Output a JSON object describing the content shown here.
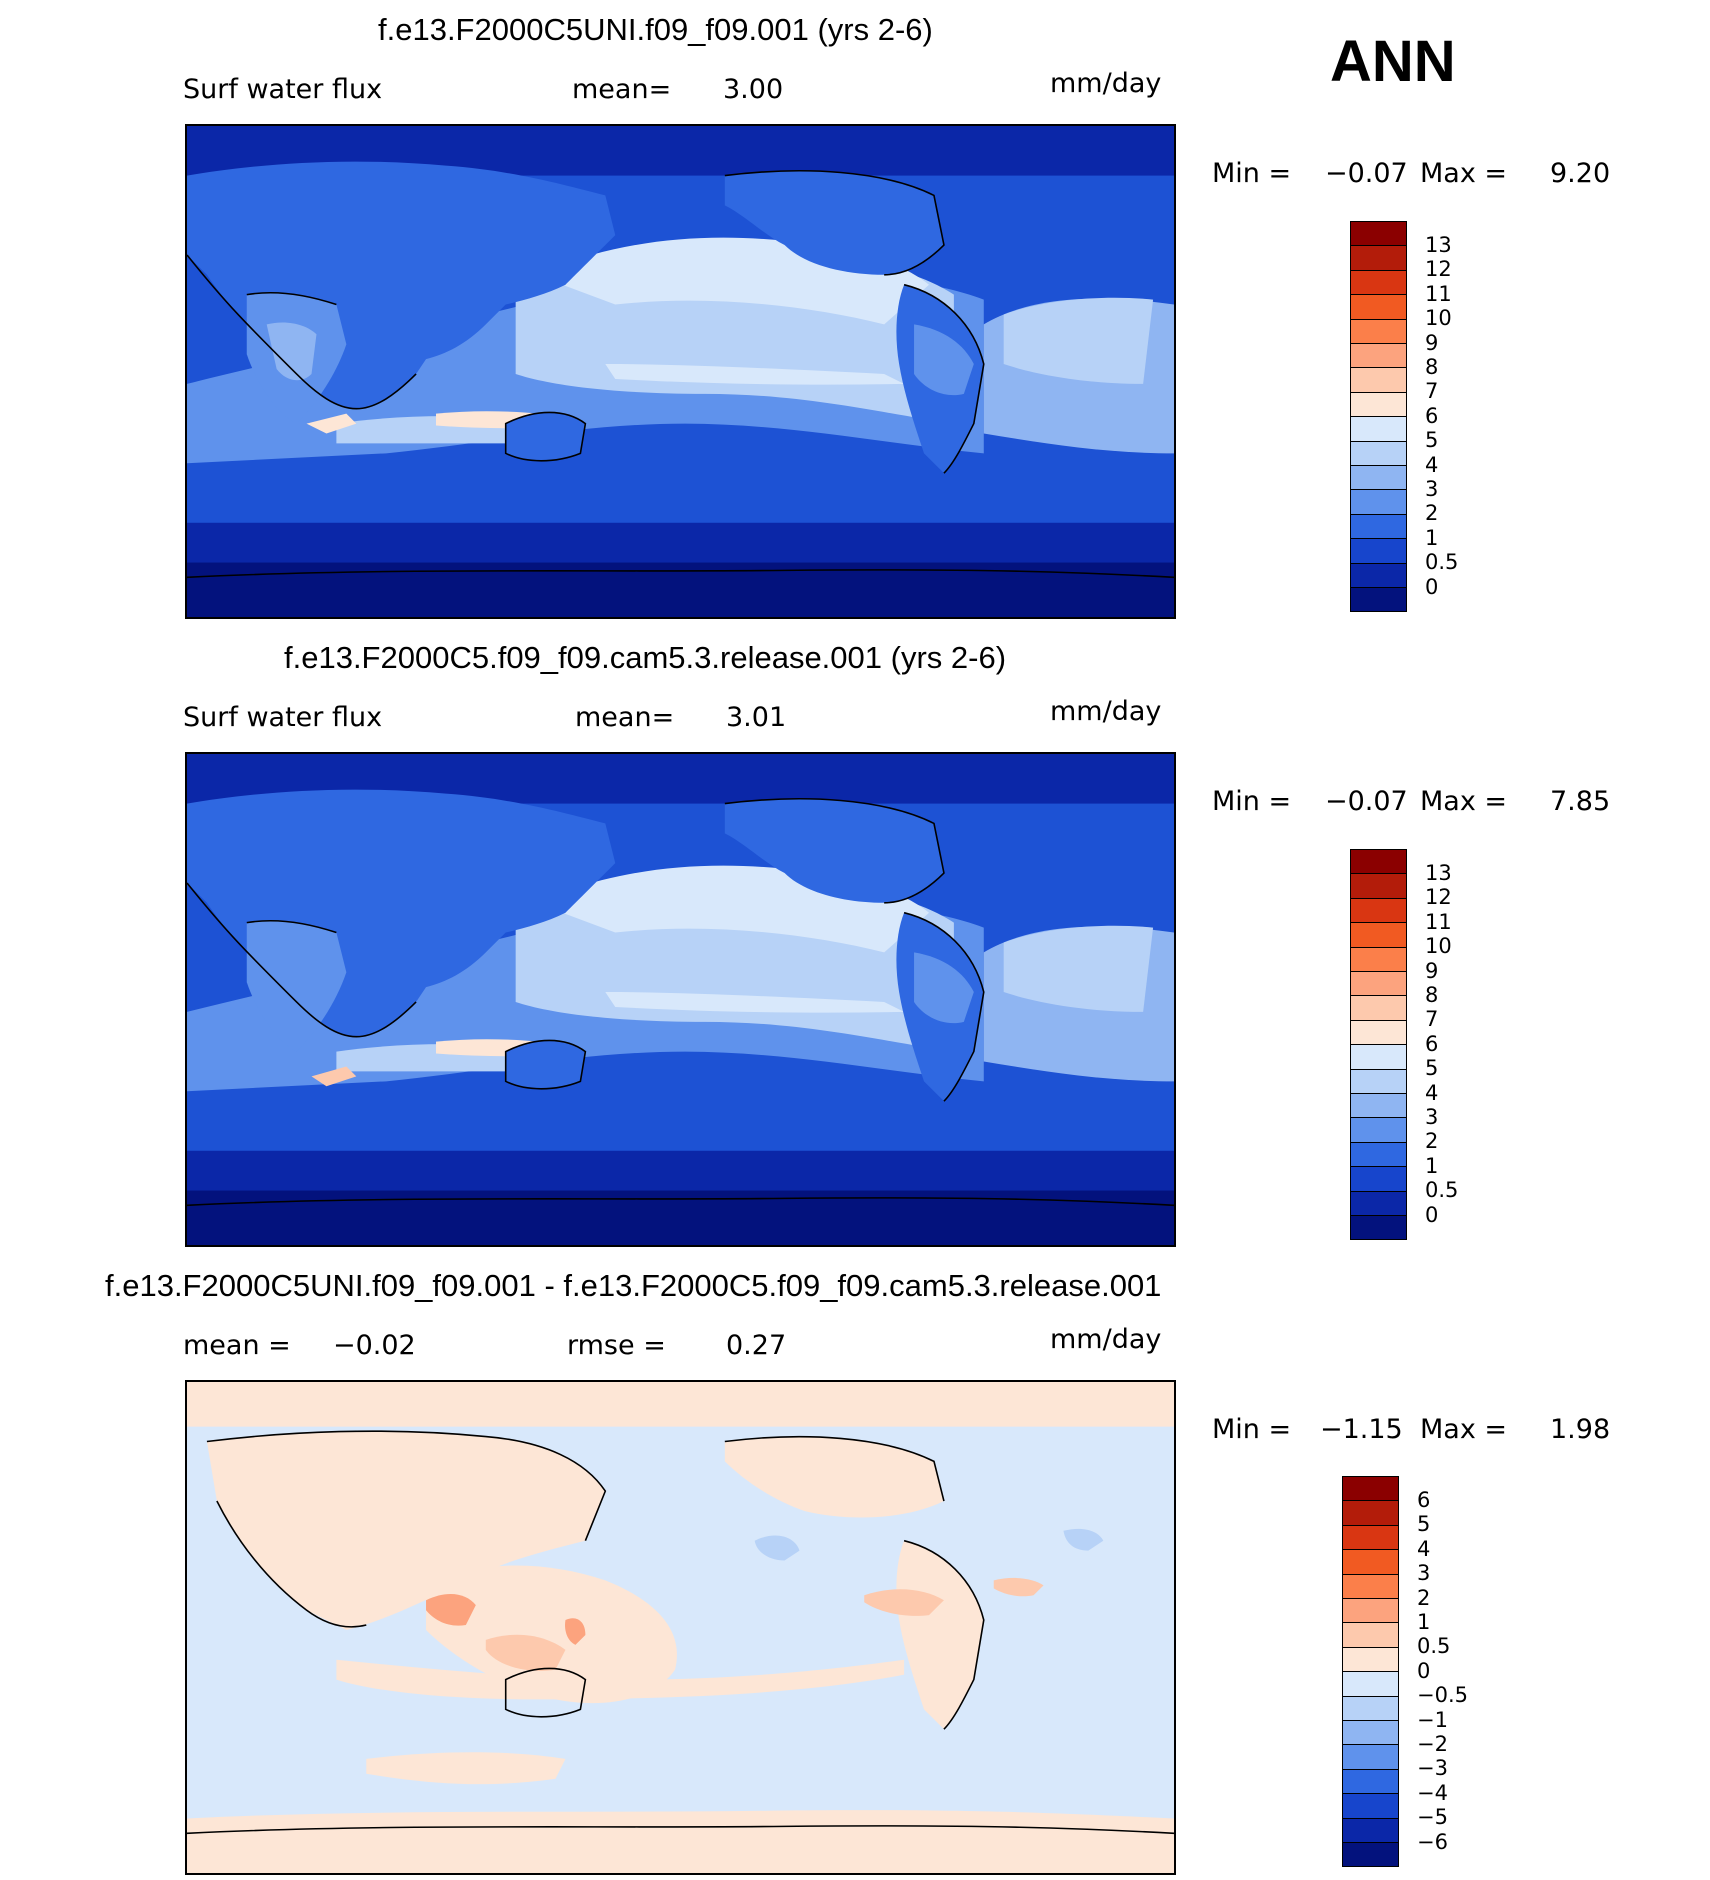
{
  "season": "ANN",
  "units": "mm/day",
  "panels": [
    {
      "id": "uni",
      "title": "f.e13.F2000C5UNI.f09_f09.001 (yrs 2-6)",
      "left_label": "Surf water flux",
      "stat_label": "mean=",
      "stat_value": "3.00",
      "min_label": "Min =",
      "min_value": "−0.07",
      "max_label": "Max =",
      "max_value": "9.20",
      "colorbar": {
        "labels": [
          "13",
          "12",
          "11",
          "10",
          "9",
          "8",
          "7",
          "6",
          "5",
          "4",
          "3",
          "2",
          "1",
          "0.5",
          "0"
        ],
        "colors": [
          "#8b0000",
          "#b31c0a",
          "#d93612",
          "#f15a22",
          "#fb7f4a",
          "#fca37e",
          "#fdc9ad",
          "#fde6d6",
          "#d8e8fb",
          "#b7d2f7",
          "#8fb5f2",
          "#5f92ec",
          "#2f68e1",
          "#1745cc",
          "#0b27a8",
          "#03127d"
        ]
      }
    },
    {
      "id": "ctrl",
      "title": "f.e13.F2000C5.f09_f09.cam5.3.release.001 (yrs 2-6)",
      "left_label": "Surf water flux",
      "stat_label": "mean=",
      "stat_value": "3.01",
      "min_label": "Min =",
      "min_value": "−0.07",
      "max_label": "Max =",
      "max_value": "7.85",
      "colorbar": {
        "labels": [
          "13",
          "12",
          "11",
          "10",
          "9",
          "8",
          "7",
          "6",
          "5",
          "4",
          "3",
          "2",
          "1",
          "0.5",
          "0"
        ],
        "colors": [
          "#8b0000",
          "#b31c0a",
          "#d93612",
          "#f15a22",
          "#fb7f4a",
          "#fca37e",
          "#fdc9ad",
          "#fde6d6",
          "#d8e8fb",
          "#b7d2f7",
          "#8fb5f2",
          "#5f92ec",
          "#2f68e1",
          "#1745cc",
          "#0b27a8",
          "#03127d"
        ]
      }
    },
    {
      "id": "diff",
      "title": "f.e13.F2000C5UNI.f09_f09.001 - f.e13.F2000C5.f09_f09.cam5.3.release.001",
      "left_label": "mean =",
      "left_value": "−0.02",
      "stat_label": "rmse =",
      "stat_value": "0.27",
      "min_label": "Min =",
      "min_value": "−1.15",
      "max_label": "Max =",
      "max_value": "1.98",
      "colorbar": {
        "labels": [
          "6",
          "5",
          "4",
          "3",
          "2",
          "1",
          "0.5",
          "0",
          "−0.5",
          "−1",
          "−2",
          "−3",
          "−4",
          "−5",
          "−6"
        ],
        "colors": [
          "#8b0000",
          "#b31c0a",
          "#d93612",
          "#f15a22",
          "#fb7f4a",
          "#fca37e",
          "#fdc9ad",
          "#fde6d6",
          "#d8e8fb",
          "#b7d2f7",
          "#8fb5f2",
          "#5f92ec",
          "#2f68e1",
          "#1745cc",
          "#0b27a8",
          "#03127d"
        ]
      }
    }
  ]
}
